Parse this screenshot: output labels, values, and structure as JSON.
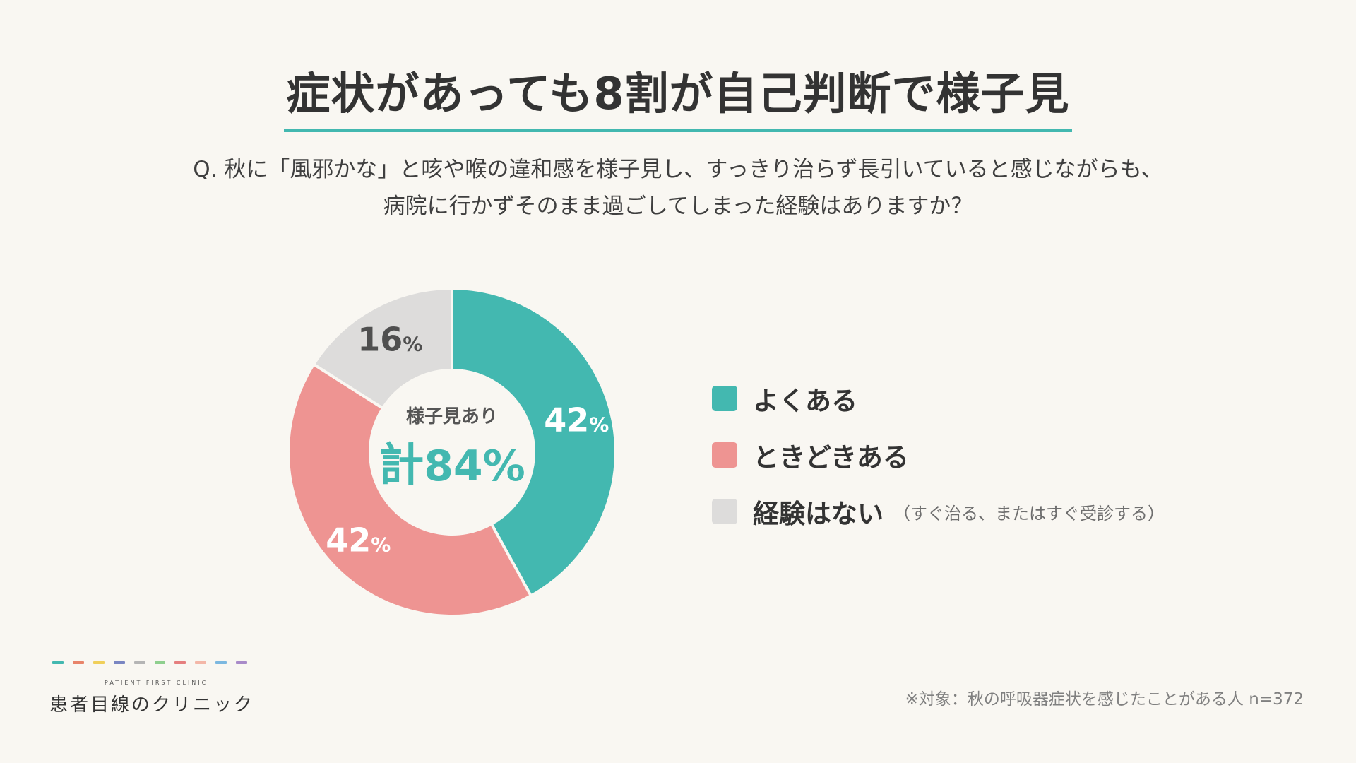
{
  "title": "症状があっても8割が自己判断で様子見",
  "question": {
    "line1": "Q. 秋に「風邪かな」と咳や喉の違和感を様子見し、すっきり治らず長引いていると感じながらも、",
    "line2": "病院に行かずそのまま過ごしてしまった経験はありますか？"
  },
  "chart_data": {
    "type": "pie",
    "donut": true,
    "series": [
      {
        "name": "よくある",
        "value": 42,
        "color": "#43b8b0"
      },
      {
        "name": "ときどきある",
        "value": 42,
        "color": "#ee9492"
      },
      {
        "name": "経験はない",
        "value": 16,
        "color": "#dddcdb"
      }
    ],
    "data_labels": [
      {
        "number": "42",
        "unit": "%"
      },
      {
        "number": "42",
        "unit": "%"
      },
      {
        "number": "16",
        "unit": "%"
      }
    ],
    "center": {
      "label": "様子見あり",
      "prefix": "計",
      "value": "84%"
    },
    "legend_note": "（すぐ治る、またはすぐ受診する）",
    "legend_position": "right"
  },
  "footnote": "※対象：秋の呼吸器症状を感じたことがある人 n=372",
  "logo": {
    "sub": "PATIENT FIRST CLINIC",
    "main": "患者目線のクリニック",
    "dash_colors": [
      "#43b8b0",
      "#e8846a",
      "#f0cf5a",
      "#7a86c2",
      "#b5b5b5",
      "#8fcf8e",
      "#e57f7f",
      "#f3b7a8",
      "#7cb8e0",
      "#a98bc9"
    ]
  },
  "colors": {
    "background": "#f9f7f2",
    "accent": "#43b8b0",
    "text": "#333333"
  }
}
